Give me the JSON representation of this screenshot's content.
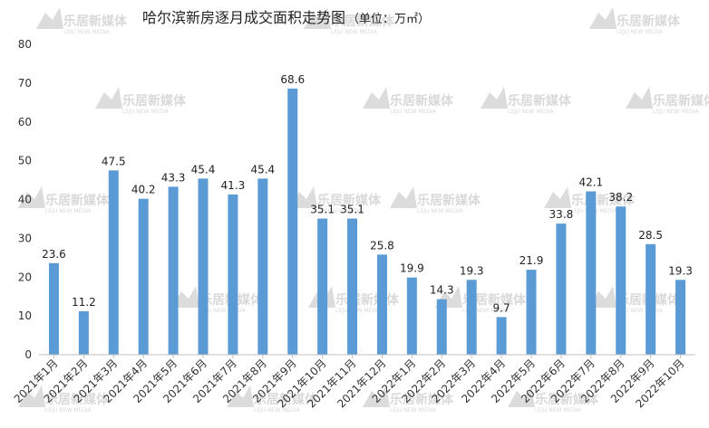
{
  "chart_data": {
    "type": "bar",
    "title": "哈尔滨新房逐月成交面积走势图",
    "unit": "（单位：万㎡）",
    "categories": [
      "2021年1月",
      "2021年2月",
      "2021年3月",
      "2021年4月",
      "2021年5月",
      "2021年6月",
      "2021年7月",
      "2021年8月",
      "2021年9月",
      "2021年10月",
      "2021年11月",
      "2021年12月",
      "2022年1月",
      "2022年2月",
      "2022年3月",
      "2022年4月",
      "2022年5月",
      "2022年6月",
      "2022年7月",
      "2022年8月",
      "2022年9月",
      "2022年10月"
    ],
    "values": [
      23.6,
      11.2,
      47.5,
      40.2,
      43.3,
      45.4,
      41.3,
      45.4,
      68.6,
      35.1,
      35.1,
      25.8,
      19.9,
      14.3,
      19.3,
      9.7,
      21.9,
      33.8,
      42.1,
      38.2,
      28.5,
      19.3
    ],
    "ylim": [
      0,
      80
    ],
    "yticks": [
      0,
      10,
      20,
      30,
      40,
      50,
      60,
      70,
      80
    ],
    "bar_color": "#5b9bd5",
    "grid": false,
    "legend": "none"
  },
  "watermark": {
    "name": "乐居新媒体",
    "sub": "LEJU NEW MEDIA"
  }
}
